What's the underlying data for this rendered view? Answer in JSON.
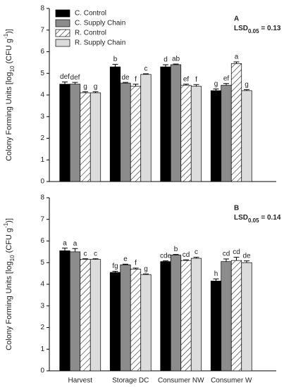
{
  "chart_data": [
    {
      "type": "bar",
      "label": "A",
      "lsd": [
        "LSD",
        "0.05",
        " = 0.13"
      ],
      "legend": true,
      "y_label": [
        "Colony Forming Units [log",
        "10",
        " (CFU g",
        "-1",
        ")]"
      ],
      "categories": [
        "Harvest",
        "Storage DC",
        "Consumer NW",
        "Consumer W"
      ],
      "ylim": [
        0,
        8
      ],
      "yticks": [
        0,
        1,
        2,
        3,
        4,
        5,
        6,
        7,
        8
      ],
      "series": [
        {
          "name": "C. Control",
          "color": "#000000",
          "values": [
            4.5,
            5.3,
            5.3,
            4.2
          ],
          "errors": [
            0.1,
            0.12,
            0.1,
            0.08
          ],
          "letters": [
            "def",
            "b",
            "d",
            "g"
          ]
        },
        {
          "name": "C. Supply Chain",
          "color": "#8c8c8c",
          "values": [
            4.5,
            4.55,
            5.4,
            4.45
          ],
          "errors": [
            0.08,
            0.03,
            0.03,
            0.08
          ],
          "letters": [
            "def",
            "de",
            "ab",
            "ef"
          ]
        },
        {
          "name": "R. Control",
          "color": "#ffffff",
          "hatch": true,
          "values": [
            4.1,
            4.4,
            4.45,
            5.45
          ],
          "errors": [
            0.05,
            0.1,
            0.05,
            0.08
          ],
          "letters": [
            "g",
            "f",
            "ef",
            "a"
          ]
        },
        {
          "name": "R. Supply Chain",
          "color": "#dcdcdc",
          "values": [
            4.1,
            4.95,
            4.4,
            4.2
          ],
          "errors": [
            0.05,
            0.03,
            0.08,
            0.05
          ],
          "letters": [
            "g",
            "c",
            "f",
            "g"
          ]
        }
      ]
    },
    {
      "type": "bar",
      "label": "B",
      "lsd": [
        "LSD",
        "0.05",
        " = 0.14"
      ],
      "legend": false,
      "y_label": [
        "Colony Forming Units [log",
        "10",
        " (CFU g",
        "-1",
        ")]"
      ],
      "categories": [
        "Harvest",
        "Storage DC",
        "Consumer NW",
        "Consumer W"
      ],
      "ylim": [
        0,
        8
      ],
      "yticks": [
        0,
        1,
        2,
        3,
        4,
        5,
        6,
        7,
        8
      ],
      "series": [
        {
          "name": "C. Control",
          "color": "#000000",
          "values": [
            5.55,
            4.55,
            5.05,
            4.15
          ],
          "errors": [
            0.12,
            0.05,
            0.03,
            0.1
          ],
          "letters": [
            "a",
            "fg",
            "cde",
            "h"
          ]
        },
        {
          "name": "C. Supply Chain",
          "color": "#8c8c8c",
          "values": [
            5.5,
            4.9,
            5.35,
            5.05
          ],
          "errors": [
            0.15,
            0.03,
            0.03,
            0.12
          ],
          "letters": [
            "a",
            "e",
            "b",
            "cd"
          ]
        },
        {
          "name": "R. Control",
          "color": "#ffffff",
          "hatch": true,
          "values": [
            5.15,
            4.7,
            5.1,
            5.1
          ],
          "errors": [
            0.03,
            0.05,
            0.03,
            0.15
          ],
          "letters": [
            "c",
            "f",
            "cd",
            "cd"
          ]
        },
        {
          "name": "R. Supply Chain",
          "color": "#dcdcdc",
          "values": [
            5.15,
            4.45,
            5.2,
            5.0
          ],
          "errors": [
            0.03,
            0.03,
            0.05,
            0.08
          ],
          "letters": [
            "c",
            "g",
            "c",
            "de"
          ]
        }
      ]
    }
  ]
}
